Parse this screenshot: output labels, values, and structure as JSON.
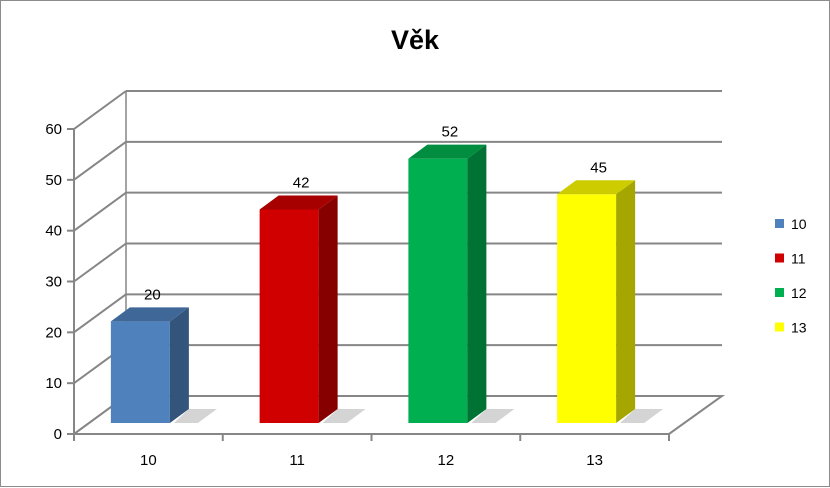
{
  "chart_data": {
    "type": "bar",
    "title": "Věk",
    "categories": [
      "10",
      "11",
      "12",
      "13"
    ],
    "values": [
      20,
      42,
      52,
      45
    ],
    "colors": [
      "#4f81bd",
      "#d00000",
      "#00b050",
      "#ffff00"
    ],
    "ylim": [
      0,
      60
    ],
    "yticks": [
      "0",
      "10",
      "20",
      "30",
      "40",
      "50",
      "60"
    ],
    "data_labels": [
      "20",
      "42",
      "52",
      "45"
    ],
    "legend": [
      "10",
      "11",
      "12",
      "13"
    ],
    "legend_position": "right",
    "grid": true,
    "style": "3d-column"
  }
}
